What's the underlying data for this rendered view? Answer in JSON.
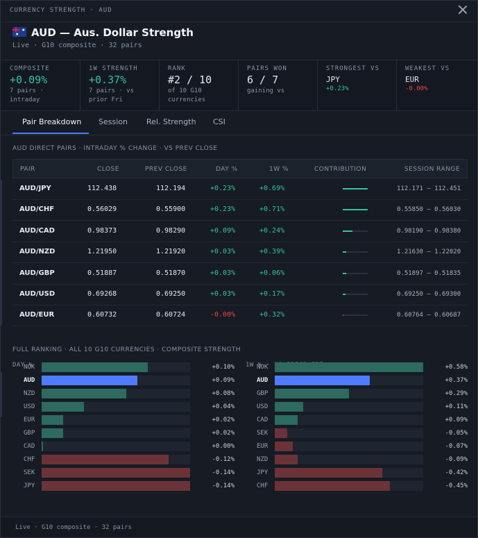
{
  "window": {
    "title": "CURRENCY STRENGTH · AUD"
  },
  "header": {
    "flag_icon": "australia-flag-icon",
    "title": "AUD — Aus. Dollar Strength",
    "subtitle": "Live · G10 composite · 32 pairs"
  },
  "stats": [
    {
      "label": "COMPOSITE",
      "value": "+0.09%",
      "detail": "7 pairs · intraday",
      "color": "#34c29a"
    },
    {
      "label": "1W STRENGTH",
      "value": "+0.37%",
      "detail": "7 pairs · vs prior Fri",
      "color": "#34c29a"
    },
    {
      "label": "RANK",
      "value": "#2 / 10",
      "detail": "of 10 G10 currencies",
      "color": "#e6e9ee"
    },
    {
      "label": "PAIRS WON",
      "value": "6 / 7",
      "detail": "gaining vs",
      "color": "#e6e9ee"
    },
    {
      "label": "STRONGEST VS",
      "value": "JPY",
      "detail": "+0.23%",
      "color": "#e6e9ee",
      "detail_color": "#34c29a"
    },
    {
      "label": "WEAKEST VS",
      "value": "EUR",
      "detail": "-0.00%",
      "color": "#e6e9ee",
      "detail_color": "#ef4444"
    }
  ],
  "tabs": [
    "Pair Breakdown",
    "Session",
    "Rel. Strength",
    "CSI"
  ],
  "active_tab": "Pair Breakdown",
  "pairs_section": {
    "title": "AUD DIRECT PAIRS · INTRADAY % CHANGE · VS PREV CLOSE",
    "columns": [
      "PAIR",
      "CLOSE",
      "PREV CLOSE",
      "DAY %",
      "1W %",
      "CONTRIBUTION",
      "SESSION RANGE"
    ],
    "rows": [
      {
        "pair": "AUD/JPY",
        "close": "112.438",
        "prev": "112.194",
        "day": "+0.23%",
        "week": "+0.69%",
        "contribution": 1.0,
        "range": "112.171 – 112.451"
      },
      {
        "pair": "AUD/CHF",
        "close": "0.56029",
        "prev": "0.55900",
        "day": "+0.23%",
        "week": "+0.71%",
        "contribution": 1.0,
        "range": "0.55850 – 0.56030"
      },
      {
        "pair": "AUD/CAD",
        "close": "0.98373",
        "prev": "0.98290",
        "day": "+0.09%",
        "week": "+0.24%",
        "contribution": 0.39,
        "range": "0.98190 – 0.98380"
      },
      {
        "pair": "AUD/NZD",
        "close": "1.21950",
        "prev": "1.21920",
        "day": "+0.03%",
        "week": "+0.39%",
        "contribution": 0.13,
        "range": "1.21630 – 1.22020"
      },
      {
        "pair": "AUD/GBP",
        "close": "0.51887",
        "prev": "0.51870",
        "day": "+0.03%",
        "week": "+0.06%",
        "contribution": 0.13,
        "range": "0.51897 – 0.51835"
      },
      {
        "pair": "AUD/USD",
        "close": "0.69268",
        "prev": "0.69250",
        "day": "+0.03%",
        "week": "+0.17%",
        "contribution": 0.11,
        "range": "0.69250 – 0.69300"
      },
      {
        "pair": "AUD/EUR",
        "close": "0.60732",
        "prev": "0.60724",
        "day": "-0.00%",
        "week": "+0.32%",
        "contribution": 0.04,
        "range": "0.60764 – 0.60687",
        "neg": true
      }
    ]
  },
  "ranking": {
    "title": "FULL RANKING · ALL 10 G10 CURRENCIES · COMPOSITE STRENGTH",
    "day": {
      "label": "DAY %",
      "rows": [
        {
          "code": "NOK",
          "value": "+0.10%",
          "num": 0.1
        },
        {
          "code": "AUD",
          "value": "+0.09%",
          "num": 0.09,
          "highlight": true
        },
        {
          "code": "NZD",
          "value": "+0.08%",
          "num": 0.08
        },
        {
          "code": "USD",
          "value": "+0.04%",
          "num": 0.04
        },
        {
          "code": "EUR",
          "value": "+0.02%",
          "num": 0.02
        },
        {
          "code": "GBP",
          "value": "+0.02%",
          "num": 0.02
        },
        {
          "code": "CAD",
          "value": "+0.00%",
          "num": 0.0
        },
        {
          "code": "CHF",
          "value": "-0.12%",
          "num": -0.12
        },
        {
          "code": "SEK",
          "value": "-0.14%",
          "num": -0.14
        },
        {
          "code": "JPY",
          "value": "-0.14%",
          "num": -0.14
        }
      ]
    },
    "week": {
      "label": "1W % · VS PRIOR FRI",
      "rows": [
        {
          "code": "NOK",
          "value": "+0.58%",
          "num": 0.58
        },
        {
          "code": "AUD",
          "value": "+0.37%",
          "num": 0.37,
          "highlight": true
        },
        {
          "code": "GBP",
          "value": "+0.29%",
          "num": 0.29
        },
        {
          "code": "USD",
          "value": "+0.11%",
          "num": 0.11
        },
        {
          "code": "CAD",
          "value": "+0.09%",
          "num": 0.09
        },
        {
          "code": "SEK",
          "value": "-0.05%",
          "num": -0.05
        },
        {
          "code": "EUR",
          "value": "-0.07%",
          "num": -0.07
        },
        {
          "code": "NZD",
          "value": "-0.09%",
          "num": -0.09
        },
        {
          "code": "JPY",
          "value": "-0.42%",
          "num": -0.42
        },
        {
          "code": "CHF",
          "value": "-0.45%",
          "num": -0.45
        }
      ]
    }
  },
  "colors": {
    "positive": "#2d6a5f",
    "negative": "#6b3338",
    "highlight": "#4f7cff"
  },
  "footer": {
    "text": "Live · G10 composite · 32 pairs"
  }
}
